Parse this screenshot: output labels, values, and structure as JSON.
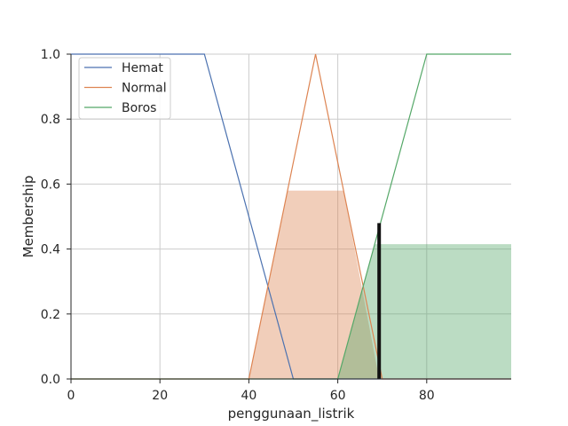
{
  "chart_data": {
    "type": "line",
    "xlabel": "penggunaan_listrik",
    "ylabel": "Membership",
    "xlim": [
      0,
      99
    ],
    "ylim": [
      0,
      1.0
    ],
    "x_ticks": [
      "0",
      "20",
      "40",
      "60",
      "80"
    ],
    "x_tick_values": [
      0,
      20,
      40,
      60,
      80
    ],
    "y_ticks": [
      "0.0",
      "0.2",
      "0.4",
      "0.6",
      "0.8",
      "1.0"
    ],
    "y_tick_values": [
      0,
      0.2,
      0.4,
      0.6,
      0.8,
      1.0
    ],
    "grid": true,
    "legend_position": "upper-left",
    "series": [
      {
        "name": "Hemat",
        "color": "#4c72b0",
        "x": [
          0,
          30,
          50,
          99
        ],
        "y": [
          1,
          1,
          0,
          0
        ]
      },
      {
        "name": "Normal",
        "color": "#dd8452",
        "x": [
          0,
          40,
          55,
          70,
          99
        ],
        "y": [
          0,
          0,
          1,
          0,
          0
        ]
      },
      {
        "name": "Boros",
        "color": "#55a868",
        "x": [
          0,
          60,
          80,
          99
        ],
        "y": [
          0,
          0,
          1,
          1
        ]
      }
    ],
    "fills": [
      {
        "series": "Normal",
        "color": "#dd8452",
        "opacity": 0.4,
        "x": [
          40,
          48.7,
          61.3,
          69.3
        ],
        "y": [
          0,
          0.58,
          0.58,
          0
        ]
      },
      {
        "series": "Boros",
        "color": "#55a868",
        "opacity": 0.4,
        "x": [
          60,
          68.3,
          99,
          99
        ],
        "y": [
          0,
          0.415,
          0.415,
          0
        ]
      }
    ],
    "marker": {
      "x": 69.3,
      "y0": 0,
      "y1": 0.48,
      "color": "#111111"
    }
  }
}
